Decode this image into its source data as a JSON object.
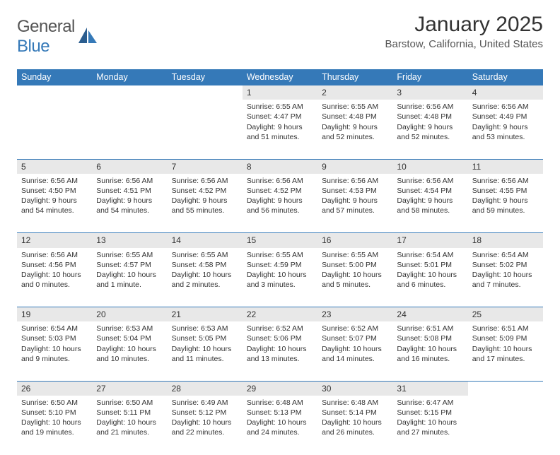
{
  "logo": {
    "text1": "General",
    "text2": "Blue"
  },
  "title": "January 2025",
  "location": "Barstow, California, United States",
  "colors": {
    "brand": "#3579b8",
    "header_bg": "#3579b8",
    "header_text": "#ffffff",
    "daynum_bg": "#e8e8e8",
    "body_text": "#333333",
    "page_bg": "#ffffff"
  },
  "day_headers": [
    "Sunday",
    "Monday",
    "Tuesday",
    "Wednesday",
    "Thursday",
    "Friday",
    "Saturday"
  ],
  "weeks": [
    [
      null,
      null,
      null,
      {
        "n": "1",
        "sr": "Sunrise: 6:55 AM",
        "ss": "Sunset: 4:47 PM",
        "dl": "Daylight: 9 hours and 51 minutes."
      },
      {
        "n": "2",
        "sr": "Sunrise: 6:55 AM",
        "ss": "Sunset: 4:48 PM",
        "dl": "Daylight: 9 hours and 52 minutes."
      },
      {
        "n": "3",
        "sr": "Sunrise: 6:56 AM",
        "ss": "Sunset: 4:48 PM",
        "dl": "Daylight: 9 hours and 52 minutes."
      },
      {
        "n": "4",
        "sr": "Sunrise: 6:56 AM",
        "ss": "Sunset: 4:49 PM",
        "dl": "Daylight: 9 hours and 53 minutes."
      }
    ],
    [
      {
        "n": "5",
        "sr": "Sunrise: 6:56 AM",
        "ss": "Sunset: 4:50 PM",
        "dl": "Daylight: 9 hours and 54 minutes."
      },
      {
        "n": "6",
        "sr": "Sunrise: 6:56 AM",
        "ss": "Sunset: 4:51 PM",
        "dl": "Daylight: 9 hours and 54 minutes."
      },
      {
        "n": "7",
        "sr": "Sunrise: 6:56 AM",
        "ss": "Sunset: 4:52 PM",
        "dl": "Daylight: 9 hours and 55 minutes."
      },
      {
        "n": "8",
        "sr": "Sunrise: 6:56 AM",
        "ss": "Sunset: 4:52 PM",
        "dl": "Daylight: 9 hours and 56 minutes."
      },
      {
        "n": "9",
        "sr": "Sunrise: 6:56 AM",
        "ss": "Sunset: 4:53 PM",
        "dl": "Daylight: 9 hours and 57 minutes."
      },
      {
        "n": "10",
        "sr": "Sunrise: 6:56 AM",
        "ss": "Sunset: 4:54 PM",
        "dl": "Daylight: 9 hours and 58 minutes."
      },
      {
        "n": "11",
        "sr": "Sunrise: 6:56 AM",
        "ss": "Sunset: 4:55 PM",
        "dl": "Daylight: 9 hours and 59 minutes."
      }
    ],
    [
      {
        "n": "12",
        "sr": "Sunrise: 6:56 AM",
        "ss": "Sunset: 4:56 PM",
        "dl": "Daylight: 10 hours and 0 minutes."
      },
      {
        "n": "13",
        "sr": "Sunrise: 6:55 AM",
        "ss": "Sunset: 4:57 PM",
        "dl": "Daylight: 10 hours and 1 minute."
      },
      {
        "n": "14",
        "sr": "Sunrise: 6:55 AM",
        "ss": "Sunset: 4:58 PM",
        "dl": "Daylight: 10 hours and 2 minutes."
      },
      {
        "n": "15",
        "sr": "Sunrise: 6:55 AM",
        "ss": "Sunset: 4:59 PM",
        "dl": "Daylight: 10 hours and 3 minutes."
      },
      {
        "n": "16",
        "sr": "Sunrise: 6:55 AM",
        "ss": "Sunset: 5:00 PM",
        "dl": "Daylight: 10 hours and 5 minutes."
      },
      {
        "n": "17",
        "sr": "Sunrise: 6:54 AM",
        "ss": "Sunset: 5:01 PM",
        "dl": "Daylight: 10 hours and 6 minutes."
      },
      {
        "n": "18",
        "sr": "Sunrise: 6:54 AM",
        "ss": "Sunset: 5:02 PM",
        "dl": "Daylight: 10 hours and 7 minutes."
      }
    ],
    [
      {
        "n": "19",
        "sr": "Sunrise: 6:54 AM",
        "ss": "Sunset: 5:03 PM",
        "dl": "Daylight: 10 hours and 9 minutes."
      },
      {
        "n": "20",
        "sr": "Sunrise: 6:53 AM",
        "ss": "Sunset: 5:04 PM",
        "dl": "Daylight: 10 hours and 10 minutes."
      },
      {
        "n": "21",
        "sr": "Sunrise: 6:53 AM",
        "ss": "Sunset: 5:05 PM",
        "dl": "Daylight: 10 hours and 11 minutes."
      },
      {
        "n": "22",
        "sr": "Sunrise: 6:52 AM",
        "ss": "Sunset: 5:06 PM",
        "dl": "Daylight: 10 hours and 13 minutes."
      },
      {
        "n": "23",
        "sr": "Sunrise: 6:52 AM",
        "ss": "Sunset: 5:07 PM",
        "dl": "Daylight: 10 hours and 14 minutes."
      },
      {
        "n": "24",
        "sr": "Sunrise: 6:51 AM",
        "ss": "Sunset: 5:08 PM",
        "dl": "Daylight: 10 hours and 16 minutes."
      },
      {
        "n": "25",
        "sr": "Sunrise: 6:51 AM",
        "ss": "Sunset: 5:09 PM",
        "dl": "Daylight: 10 hours and 17 minutes."
      }
    ],
    [
      {
        "n": "26",
        "sr": "Sunrise: 6:50 AM",
        "ss": "Sunset: 5:10 PM",
        "dl": "Daylight: 10 hours and 19 minutes."
      },
      {
        "n": "27",
        "sr": "Sunrise: 6:50 AM",
        "ss": "Sunset: 5:11 PM",
        "dl": "Daylight: 10 hours and 21 minutes."
      },
      {
        "n": "28",
        "sr": "Sunrise: 6:49 AM",
        "ss": "Sunset: 5:12 PM",
        "dl": "Daylight: 10 hours and 22 minutes."
      },
      {
        "n": "29",
        "sr": "Sunrise: 6:48 AM",
        "ss": "Sunset: 5:13 PM",
        "dl": "Daylight: 10 hours and 24 minutes."
      },
      {
        "n": "30",
        "sr": "Sunrise: 6:48 AM",
        "ss": "Sunset: 5:14 PM",
        "dl": "Daylight: 10 hours and 26 minutes."
      },
      {
        "n": "31",
        "sr": "Sunrise: 6:47 AM",
        "ss": "Sunset: 5:15 PM",
        "dl": "Daylight: 10 hours and 27 minutes."
      },
      null
    ]
  ]
}
